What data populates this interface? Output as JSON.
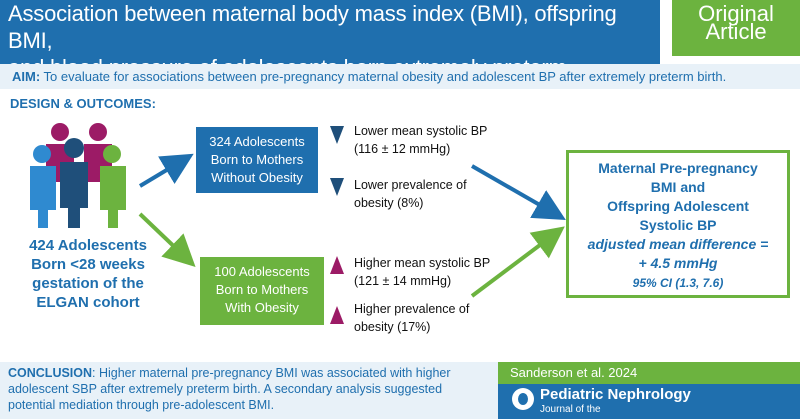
{
  "header": {
    "title_line1": "Association between maternal body mass index (BMI), offspring BMI,",
    "title_line2": "and blood pressure of adolescents born extremely preterm",
    "badge_line1": "Original",
    "badge_line2": "Article"
  },
  "aim": {
    "label": "AIM:",
    "text": " To evaluate for associations between pre-pregnancy maternal obesity and adolescent BP after extremely preterm birth."
  },
  "design_label": "DESIGN & OUTCOMES:",
  "cohort": {
    "lines": [
      "424 Adolescents",
      "Born <28 weeks",
      "gestation of the",
      "ELGAN cohort"
    ]
  },
  "groups": {
    "without": {
      "lines": [
        "324 Adolescents",
        "Born to Mothers",
        "Without Obesity"
      ],
      "outcome1": [
        "Lower mean systolic BP",
        "(116 ± 12 mmHg)"
      ],
      "outcome2": [
        "Lower prevalence of",
        "obesity (8%)"
      ]
    },
    "with": {
      "lines": [
        "100 Adolescents",
        "Born to Mothers",
        "With Obesity"
      ],
      "outcome1": [
        "Higher mean systolic BP",
        "(121 ± 14 mmHg)"
      ],
      "outcome2": [
        "Higher prevalence of",
        "obesity (17%)"
      ]
    }
  },
  "result": {
    "lines": [
      "Maternal Pre-pregnancy",
      "BMI and",
      "Offspring Adolescent",
      "Systolic BP"
    ],
    "italic_lines": [
      "adjusted mean difference =",
      "+ 4.5 mmHg"
    ],
    "ci": "95% CI (1.3, 7.6)"
  },
  "conclusion": {
    "label": "CONCLUSION",
    "text": ": Higher maternal pre-pregnancy BMI was associated with higher adolescent SBP after extremely preterm birth. A secondary analysis suggested potential mediation through pre-adolescent BMI."
  },
  "citation": "Sanderson et al. 2024",
  "journal": {
    "name": "Pediatric Nephrology",
    "subtitle": "Journal of the"
  },
  "colors": {
    "blue": "#1f6fae",
    "green": "#6cb33f",
    "down_arrow": "#1f4f7a",
    "up_arrow": "#9c1b66"
  }
}
